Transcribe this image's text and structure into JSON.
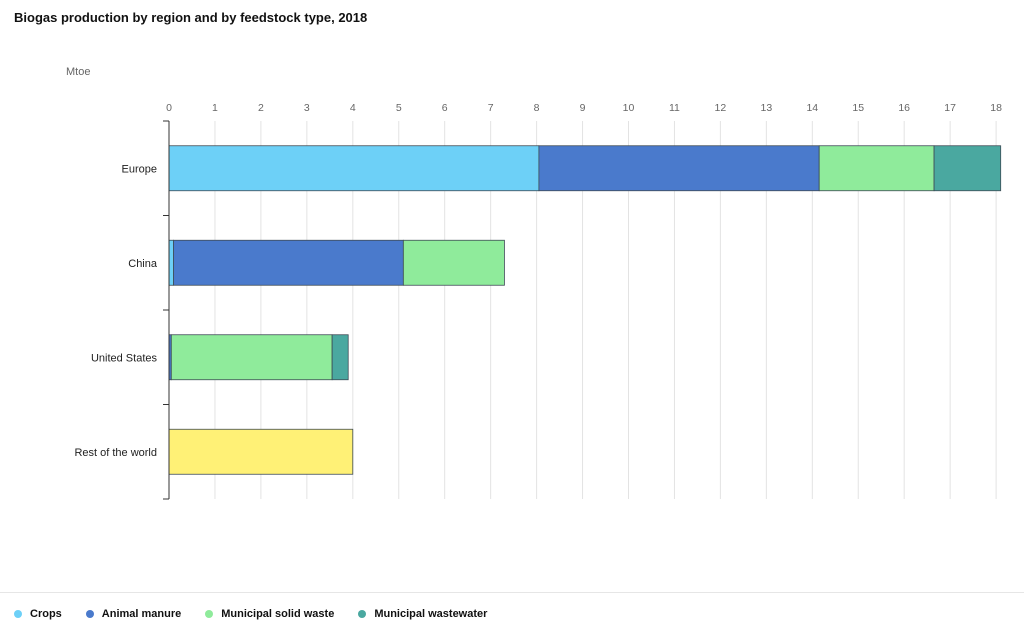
{
  "chart_data": {
    "type": "bar",
    "orientation": "horizontal",
    "stacked": true,
    "title": "Biogas production by region and by feedstock type, 2018",
    "unit": "Mtoe",
    "categories": [
      "Europe",
      "China",
      "United States",
      "Rest of the world"
    ],
    "x_ticks": [
      0,
      1,
      2,
      3,
      4,
      5,
      6,
      7,
      8,
      9,
      10,
      11,
      12,
      13,
      14,
      15,
      16,
      17,
      18
    ],
    "xlim": [
      0,
      18
    ],
    "grid": true,
    "legend_position": "bottom-left",
    "series": [
      {
        "name": "Crops",
        "color": "#6dd0f7",
        "values": [
          8.05,
          0.1,
          0,
          0
        ]
      },
      {
        "name": "Animal manure",
        "color": "#4a7acc",
        "values": [
          6.1,
          5.0,
          0.05,
          0
        ]
      },
      {
        "name": "Municipal solid waste",
        "color": "#8feb9b",
        "values": [
          2.5,
          2.2,
          3.5,
          0
        ]
      },
      {
        "name": "Municipal wastewater",
        "color": "#4aa8a0",
        "values": [
          1.45,
          0,
          0.35,
          0
        ]
      },
      {
        "name": "",
        "color": "#fff176",
        "values": [
          0,
          0,
          0,
          4.0
        ]
      }
    ]
  }
}
